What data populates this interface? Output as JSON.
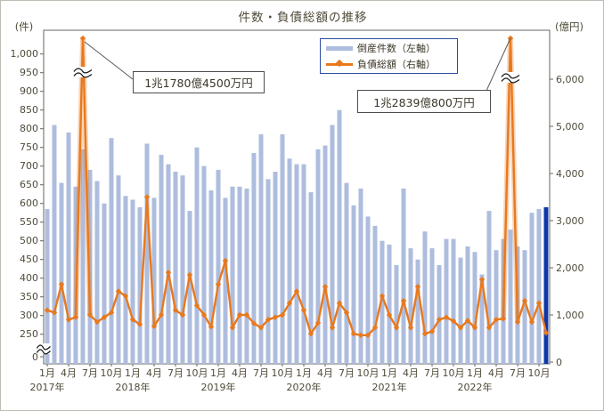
{
  "title": "件数・負債総額の推移",
  "left_axis": {
    "unit": "(件)",
    "tick_values": [
      1000,
      950,
      900,
      850,
      800,
      750,
      700,
      650,
      600,
      550,
      500,
      450,
      400,
      350,
      300,
      250,
      0
    ],
    "break_between": [
      0,
      250
    ]
  },
  "right_axis": {
    "unit": "(億円)",
    "tick_values": [
      6000,
      5000,
      4000,
      3000,
      2000,
      1000,
      0
    ]
  },
  "x_axis": {
    "quarter_labels": [
      "1月",
      "4月",
      "7月",
      "10月"
    ],
    "year_labels": [
      "2017年",
      "2018年",
      "2019年",
      "2020年",
      "2021年",
      "2022年"
    ]
  },
  "legend": [
    {
      "label": "倒産件数（左軸）",
      "type": "bar",
      "color": "#aebdde"
    },
    {
      "label": "負債総額（右軸）",
      "type": "line",
      "color": "#e8791e"
    }
  ],
  "annotations": [
    {
      "text": "1兆1780億4500万円",
      "month": "2017-06"
    },
    {
      "text": "1兆2839億800万円",
      "month": "2022-06"
    }
  ],
  "colors": {
    "bar": "#aebdde",
    "bar_latest": "#0e38a8",
    "line": "#e8791e",
    "axis": "#666660",
    "text": "#4f4b39"
  },
  "chart_data": {
    "type": "bar",
    "combo": true,
    "title": "件数・負債総額の推移",
    "xlabel": "",
    "ylabel_left": "件",
    "ylabel_right": "億円",
    "left_axis_range": [
      0,
      1050
    ],
    "left_axis_break": [
      0,
      250
    ],
    "right_axis_range": [
      0,
      6500
    ],
    "right_axis_break_above": 6000,
    "grid": false,
    "legend_position": "top-right",
    "months": [
      "2017-01",
      "2017-02",
      "2017-03",
      "2017-04",
      "2017-05",
      "2017-06",
      "2017-07",
      "2017-08",
      "2017-09",
      "2017-10",
      "2017-11",
      "2017-12",
      "2018-01",
      "2018-02",
      "2018-03",
      "2018-04",
      "2018-05",
      "2018-06",
      "2018-07",
      "2018-08",
      "2018-09",
      "2018-10",
      "2018-11",
      "2018-12",
      "2019-01",
      "2019-02",
      "2019-03",
      "2019-04",
      "2019-05",
      "2019-06",
      "2019-07",
      "2019-08",
      "2019-09",
      "2019-10",
      "2019-11",
      "2019-12",
      "2020-01",
      "2020-02",
      "2020-03",
      "2020-04",
      "2020-05",
      "2020-06",
      "2020-07",
      "2020-08",
      "2020-09",
      "2020-10",
      "2020-11",
      "2020-12",
      "2021-01",
      "2021-02",
      "2021-03",
      "2021-04",
      "2021-05",
      "2021-06",
      "2021-07",
      "2021-08",
      "2021-09",
      "2021-10",
      "2021-11",
      "2021-12",
      "2022-01",
      "2022-02",
      "2022-03",
      "2022-04",
      "2022-05",
      "2022-06",
      "2022-07",
      "2022-08",
      "2022-09",
      "2022-10",
      "2022-11"
    ],
    "series": [
      {
        "name": "倒産件数（左軸）",
        "type": "bar",
        "axis": "left",
        "unit": "件",
        "values": [
          585,
          810,
          655,
          790,
          645,
          745,
          690,
          660,
          600,
          775,
          675,
          620,
          610,
          590,
          760,
          615,
          730,
          705,
          685,
          675,
          580,
          750,
          700,
          635,
          690,
          615,
          645,
          645,
          640,
          735,
          785,
          665,
          685,
          785,
          720,
          705,
          705,
          630,
          745,
          755,
          810,
          850,
          655,
          595,
          640,
          565,
          540,
          500,
          490,
          435,
          640,
          480,
          450,
          525,
          480,
          435,
          505,
          505,
          455,
          485,
          470,
          410,
          580,
          475,
          505,
          530,
          485,
          475,
          575,
          585,
          590
        ],
        "latest_highlight_color": "#0e38a8"
      },
      {
        "name": "負債総額（右軸）",
        "type": "line",
        "axis": "right",
        "unit": "億円",
        "values": [
          1100,
          1050,
          1650,
          900,
          950,
          11780.45,
          1000,
          850,
          950,
          1050,
          1500,
          1400,
          900,
          800,
          3500,
          760,
          1000,
          1900,
          1100,
          1000,
          1850,
          1200,
          1000,
          750,
          1650,
          2150,
          730,
          1000,
          1000,
          820,
          730,
          900,
          950,
          1000,
          1250,
          1500,
          1100,
          600,
          830,
          1600,
          730,
          1250,
          1050,
          600,
          570,
          570,
          730,
          1400,
          1000,
          730,
          1300,
          730,
          1600,
          600,
          650,
          900,
          950,
          870,
          730,
          880,
          730,
          1750,
          730,
          900,
          920,
          12839.08,
          850,
          1300,
          850,
          1250,
          620
        ]
      }
    ],
    "spike_annotations": [
      {
        "index": 5,
        "label": "1兆1780億4500万円"
      },
      {
        "index": 65,
        "label": "1兆2839億800万円"
      }
    ]
  }
}
